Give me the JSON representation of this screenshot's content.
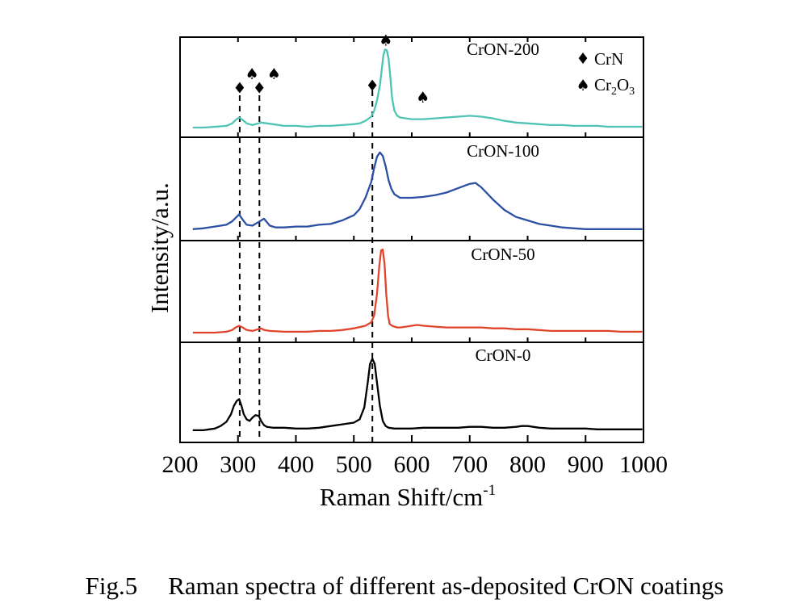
{
  "figure": {
    "caption_number": "Fig.5",
    "caption_text": "Raman spectra of different as-deposited CrON coatings"
  },
  "chart_data": {
    "type": "line",
    "layout": "stacked-panels",
    "xlabel": "Raman Shift/cm",
    "xlabel_superscript": "-1",
    "ylabel": "Intensity/a.u.",
    "xlim": [
      200,
      1000
    ],
    "xticks": [
      200,
      300,
      400,
      500,
      600,
      700,
      800,
      900,
      1000
    ],
    "y_ticks_shown": false,
    "grid": false,
    "legend": {
      "placement": "top-right",
      "entries": [
        {
          "symbol": "♦",
          "label": "CrN",
          "subscripts": []
        },
        {
          "symbol": "♠",
          "label": "Cr2O3",
          "parts": [
            "Cr",
            "2",
            "O",
            "3"
          ]
        }
      ]
    },
    "reference_lines_x": [
      303,
      337,
      532
    ],
    "markers": [
      {
        "symbol": "♦",
        "phase": "CrN",
        "x": 303,
        "y": 0.35
      },
      {
        "symbol": "♠",
        "phase": "Cr2O3",
        "x": 324,
        "y": 0.52
      },
      {
        "symbol": "♦",
        "phase": "CrN",
        "x": 337,
        "y": 0.35
      },
      {
        "symbol": "♠",
        "phase": "Cr2O3",
        "x": 362,
        "y": 0.52
      },
      {
        "symbol": "♦",
        "phase": "CrN",
        "x": 532,
        "y": 0.38
      },
      {
        "symbol": "♠",
        "phase": "Cr2O3",
        "x": 555,
        "y": 0.92
      },
      {
        "symbol": "♠",
        "phase": "Cr2O3",
        "x": 619,
        "y": 0.24
      }
    ],
    "series": [
      {
        "name": "CrON-200",
        "color": "#4fc4b4",
        "x": [
          222,
          240,
          260,
          280,
          290,
          296,
          302,
          308,
          315,
          325,
          340,
          360,
          380,
          400,
          420,
          440,
          460,
          480,
          500,
          510,
          520,
          530,
          535,
          540,
          545,
          548,
          551,
          554,
          557,
          560,
          563,
          566,
          570,
          575,
          580,
          590,
          600,
          620,
          640,
          660,
          680,
          700,
          720,
          740,
          760,
          780,
          800,
          820,
          840,
          860,
          880,
          900,
          920,
          940,
          960,
          980,
          998
        ],
        "values": [
          0.0,
          0.0,
          0.01,
          0.02,
          0.05,
          0.09,
          0.12,
          0.09,
          0.05,
          0.03,
          0.06,
          0.04,
          0.02,
          0.02,
          0.01,
          0.02,
          0.02,
          0.03,
          0.04,
          0.05,
          0.08,
          0.13,
          0.2,
          0.32,
          0.5,
          0.68,
          0.86,
          0.93,
          0.92,
          0.82,
          0.6,
          0.35,
          0.2,
          0.14,
          0.12,
          0.11,
          0.1,
          0.1,
          0.11,
          0.12,
          0.13,
          0.14,
          0.13,
          0.11,
          0.08,
          0.06,
          0.05,
          0.04,
          0.03,
          0.03,
          0.02,
          0.02,
          0.02,
          0.01,
          0.01,
          0.01,
          0.01
        ]
      },
      {
        "name": "CrON-100",
        "color": "#2b4fa3",
        "x": [
          222,
          240,
          260,
          280,
          290,
          296,
          302,
          308,
          315,
          325,
          335,
          345,
          355,
          365,
          380,
          400,
          420,
          440,
          460,
          480,
          500,
          510,
          520,
          530,
          535,
          540,
          545,
          550,
          555,
          560,
          565,
          570,
          580,
          600,
          620,
          640,
          660,
          680,
          700,
          710,
          720,
          740,
          760,
          780,
          800,
          820,
          840,
          860,
          880,
          900,
          920,
          940,
          960,
          980,
          998
        ],
        "values": [
          0.02,
          0.03,
          0.05,
          0.07,
          0.11,
          0.15,
          0.19,
          0.13,
          0.07,
          0.06,
          0.1,
          0.14,
          0.06,
          0.04,
          0.04,
          0.05,
          0.05,
          0.07,
          0.08,
          0.12,
          0.18,
          0.25,
          0.38,
          0.56,
          0.72,
          0.85,
          0.9,
          0.86,
          0.74,
          0.58,
          0.48,
          0.42,
          0.38,
          0.38,
          0.39,
          0.41,
          0.44,
          0.49,
          0.54,
          0.55,
          0.5,
          0.36,
          0.24,
          0.16,
          0.12,
          0.08,
          0.06,
          0.04,
          0.03,
          0.02,
          0.02,
          0.02,
          0.02,
          0.02,
          0.02
        ]
      },
      {
        "name": "CrON-50",
        "color": "#e0452b",
        "x": [
          222,
          240,
          260,
          280,
          290,
          296,
          302,
          308,
          315,
          325,
          335,
          340,
          345,
          355,
          380,
          400,
          420,
          440,
          460,
          480,
          500,
          520,
          530,
          535,
          540,
          544,
          547,
          550,
          553,
          556,
          559,
          562,
          566,
          570,
          575,
          580,
          590,
          600,
          610,
          620,
          640,
          660,
          680,
          700,
          720,
          740,
          760,
          780,
          800,
          820,
          840,
          860,
          880,
          900,
          920,
          940,
          960,
          980,
          998
        ],
        "values": [
          0.0,
          0.0,
          0.0,
          0.01,
          0.03,
          0.06,
          0.08,
          0.06,
          0.03,
          0.02,
          0.04,
          0.05,
          0.03,
          0.02,
          0.01,
          0.01,
          0.01,
          0.02,
          0.02,
          0.03,
          0.05,
          0.08,
          0.12,
          0.2,
          0.45,
          0.78,
          0.96,
          0.97,
          0.8,
          0.45,
          0.2,
          0.1,
          0.08,
          0.07,
          0.06,
          0.06,
          0.07,
          0.08,
          0.09,
          0.08,
          0.07,
          0.06,
          0.06,
          0.06,
          0.06,
          0.05,
          0.05,
          0.04,
          0.04,
          0.03,
          0.02,
          0.02,
          0.02,
          0.02,
          0.02,
          0.02,
          0.01,
          0.01,
          0.01
        ]
      },
      {
        "name": "CrON-0",
        "color": "#000000",
        "x": [
          222,
          240,
          260,
          270,
          280,
          288,
          293,
          298,
          302,
          306,
          310,
          315,
          320,
          325,
          330,
          336,
          340,
          345,
          350,
          360,
          380,
          400,
          420,
          440,
          460,
          480,
          500,
          510,
          518,
          524,
          528,
          532,
          536,
          540,
          545,
          550,
          555,
          560,
          570,
          580,
          600,
          620,
          640,
          660,
          680,
          700,
          720,
          740,
          760,
          780,
          790,
          800,
          820,
          840,
          860,
          880,
          900,
          920,
          940,
          960,
          980,
          998
        ],
        "values": [
          0.03,
          0.03,
          0.05,
          0.08,
          0.13,
          0.22,
          0.32,
          0.38,
          0.4,
          0.32,
          0.22,
          0.16,
          0.14,
          0.18,
          0.21,
          0.2,
          0.14,
          0.09,
          0.07,
          0.06,
          0.06,
          0.05,
          0.05,
          0.06,
          0.08,
          0.1,
          0.12,
          0.16,
          0.3,
          0.6,
          0.82,
          0.88,
          0.82,
          0.6,
          0.32,
          0.14,
          0.08,
          0.06,
          0.05,
          0.05,
          0.05,
          0.06,
          0.06,
          0.06,
          0.06,
          0.07,
          0.07,
          0.06,
          0.06,
          0.07,
          0.08,
          0.08,
          0.06,
          0.05,
          0.05,
          0.05,
          0.05,
          0.04,
          0.04,
          0.04,
          0.04,
          0.04
        ]
      }
    ]
  }
}
